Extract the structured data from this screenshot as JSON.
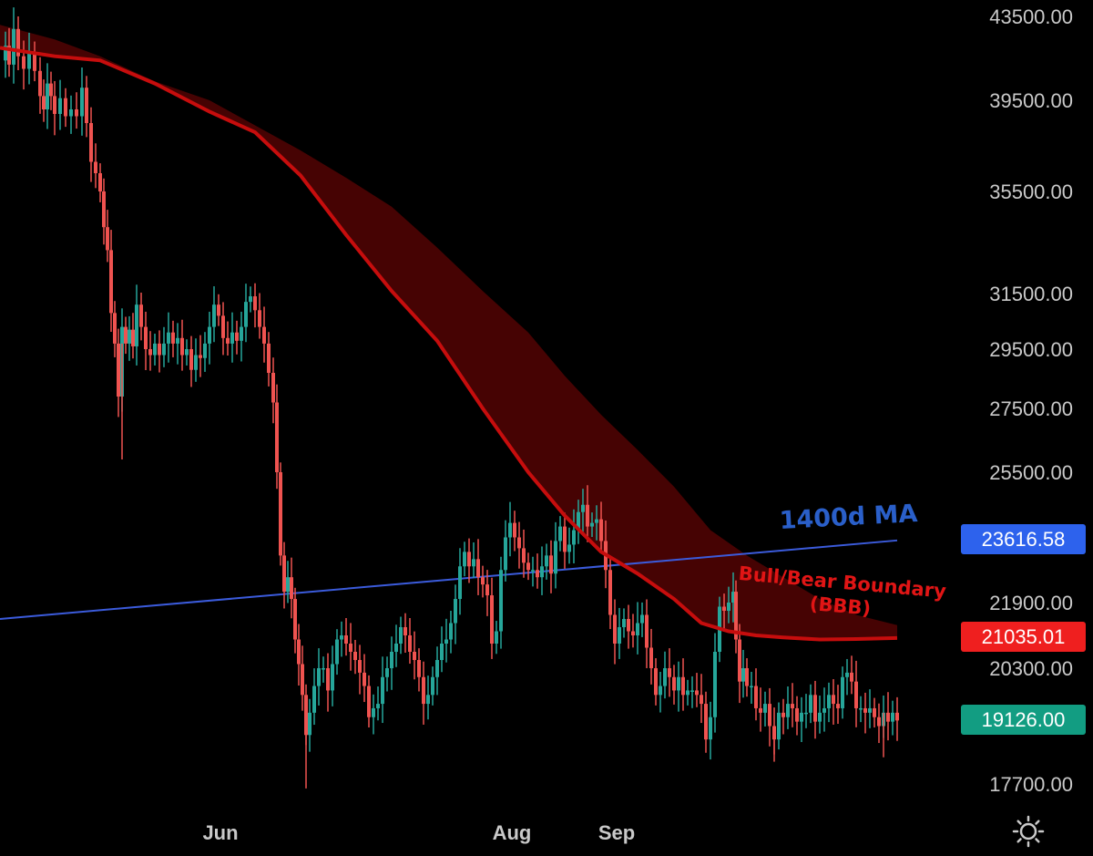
{
  "chart_data": {
    "type": "candlestick",
    "y_ticks": [
      "43500.00",
      "39500.00",
      "35500.00",
      "31500.00",
      "29500.00",
      "27500.00",
      "25500.00",
      "21900.00",
      "20300.00",
      "17700.00"
    ],
    "x_ticks": [
      "Jun",
      "Aug",
      "Sep"
    ],
    "series": [
      {
        "name": "1400d MA",
        "start": 21500,
        "end": 23616.58
      },
      {
        "name": "Bull/Bear Boundary (BBB)"
      }
    ],
    "annotations": {
      "ma_label": "1400d MA",
      "bbb_label_line1": "Bull/Bear Boundary",
      "bbb_label_line2": "(BBB)"
    },
    "price_badges": [
      {
        "value": "23616.58",
        "color": "#2d62ed"
      },
      {
        "value": "21035.01",
        "color": "#ef1f1f"
      },
      {
        "value": "19126.00",
        "color": "#129d82"
      }
    ],
    "colors": {
      "up": "#26a69a",
      "down": "#ef5350",
      "ma": "#3b5bdb",
      "bbb": "#c60d0d",
      "band": "#4a0303"
    },
    "price_path": [
      [
        0,
        41400
      ],
      [
        6,
        42100
      ],
      [
        10,
        41200
      ],
      [
        15,
        42900
      ],
      [
        20,
        41600
      ],
      [
        26,
        41000
      ],
      [
        32,
        41800
      ],
      [
        38,
        40900
      ],
      [
        44,
        39700
      ],
      [
        48,
        39100
      ],
      [
        52,
        40300
      ],
      [
        56,
        39700
      ],
      [
        60,
        38900
      ],
      [
        66,
        39600
      ],
      [
        72,
        38800
      ],
      [
        78,
        39100
      ],
      [
        84,
        38800
      ],
      [
        90,
        40100
      ],
      [
        95,
        38500
      ],
      [
        100,
        36800
      ],
      [
        105,
        36300
      ],
      [
        110,
        35500
      ],
      [
        114,
        34100
      ],
      [
        118,
        33200
      ],
      [
        122,
        30800
      ],
      [
        126,
        29700
      ],
      [
        130,
        27900
      ],
      [
        134,
        30300
      ],
      [
        138,
        29700
      ],
      [
        142,
        30200
      ],
      [
        146,
        29600
      ],
      [
        150,
        31100
      ],
      [
        155,
        30300
      ],
      [
        160,
        29500
      ],
      [
        165,
        29300
      ],
      [
        170,
        29700
      ],
      [
        175,
        29300
      ],
      [
        180,
        29700
      ],
      [
        185,
        30100
      ],
      [
        190,
        29700
      ],
      [
        195,
        29900
      ],
      [
        200,
        29300
      ],
      [
        205,
        29500
      ],
      [
        210,
        28800
      ],
      [
        215,
        29300
      ],
      [
        220,
        29200
      ],
      [
        225,
        29700
      ],
      [
        230,
        30300
      ],
      [
        235,
        31100
      ],
      [
        240,
        30700
      ],
      [
        245,
        29900
      ],
      [
        250,
        29700
      ],
      [
        255,
        30100
      ],
      [
        260,
        29800
      ],
      [
        265,
        30300
      ],
      [
        270,
        31200
      ],
      [
        275,
        31400
      ],
      [
        280,
        30900
      ],
      [
        285,
        30300
      ],
      [
        290,
        29700
      ],
      [
        295,
        28700
      ],
      [
        300,
        27700
      ],
      [
        304,
        25500
      ],
      [
        308,
        23200
      ],
      [
        312,
        22200
      ],
      [
        316,
        22600
      ],
      [
        320,
        22000
      ],
      [
        324,
        21000
      ],
      [
        328,
        20400
      ],
      [
        332,
        19700
      ],
      [
        336,
        18800
      ],
      [
        340,
        19300
      ],
      [
        345,
        19900
      ],
      [
        350,
        20300
      ],
      [
        355,
        20300
      ],
      [
        360,
        19800
      ],
      [
        365,
        20400
      ],
      [
        370,
        21000
      ],
      [
        375,
        21100
      ],
      [
        380,
        20900
      ],
      [
        385,
        20700
      ],
      [
        390,
        20500
      ],
      [
        395,
        20200
      ],
      [
        400,
        19900
      ],
      [
        405,
        19200
      ],
      [
        410,
        19400
      ],
      [
        415,
        19500
      ],
      [
        420,
        20100
      ],
      [
        425,
        20300
      ],
      [
        430,
        20700
      ],
      [
        435,
        20900
      ],
      [
        440,
        21300
      ],
      [
        445,
        21100
      ],
      [
        450,
        20700
      ],
      [
        455,
        20500
      ],
      [
        460,
        20100
      ],
      [
        465,
        19500
      ],
      [
        470,
        19700
      ],
      [
        475,
        20100
      ],
      [
        480,
        20500
      ],
      [
        485,
        20900
      ],
      [
        490,
        21000
      ],
      [
        495,
        21400
      ],
      [
        500,
        22000
      ],
      [
        505,
        22900
      ],
      [
        510,
        23300
      ],
      [
        515,
        22900
      ],
      [
        520,
        23100
      ],
      [
        525,
        22600
      ],
      [
        530,
        22400
      ],
      [
        535,
        22100
      ],
      [
        540,
        20900
      ],
      [
        545,
        21200
      ],
      [
        550,
        22800
      ],
      [
        555,
        23700
      ],
      [
        560,
        24100
      ],
      [
        565,
        23700
      ],
      [
        570,
        23400
      ],
      [
        575,
        23000
      ],
      [
        580,
        22800
      ],
      [
        585,
        22800
      ],
      [
        590,
        22600
      ],
      [
        595,
        22900
      ],
      [
        600,
        23200
      ],
      [
        605,
        22700
      ],
      [
        610,
        23600
      ],
      [
        615,
        24000
      ],
      [
        620,
        23300
      ],
      [
        625,
        23500
      ],
      [
        630,
        23900
      ],
      [
        635,
        24400
      ],
      [
        640,
        24600
      ],
      [
        645,
        24000
      ],
      [
        650,
        24100
      ],
      [
        655,
        24200
      ],
      [
        660,
        23600
      ],
      [
        665,
        22800
      ],
      [
        670,
        21600
      ],
      [
        675,
        20900
      ],
      [
        680,
        21300
      ],
      [
        685,
        21500
      ],
      [
        690,
        21200
      ],
      [
        695,
        21100
      ],
      [
        700,
        21400
      ],
      [
        705,
        21600
      ],
      [
        710,
        20800
      ],
      [
        715,
        20300
      ],
      [
        720,
        19700
      ],
      [
        725,
        19900
      ],
      [
        730,
        20300
      ],
      [
        735,
        20100
      ],
      [
        740,
        19800
      ],
      [
        745,
        20100
      ],
      [
        750,
        19700
      ],
      [
        755,
        19800
      ],
      [
        760,
        19800
      ],
      [
        765,
        19700
      ],
      [
        770,
        19500
      ],
      [
        775,
        18700
      ],
      [
        780,
        19200
      ],
      [
        785,
        20700
      ],
      [
        790,
        21800
      ],
      [
        795,
        21700
      ],
      [
        800,
        21900
      ],
      [
        805,
        22200
      ],
      [
        808,
        21000
      ],
      [
        812,
        20000
      ],
      [
        816,
        20300
      ],
      [
        820,
        19900
      ],
      [
        825,
        19900
      ],
      [
        830,
        19400
      ],
      [
        835,
        19300
      ],
      [
        840,
        19500
      ],
      [
        845,
        19000
      ],
      [
        850,
        18700
      ],
      [
        855,
        19300
      ],
      [
        860,
        19200
      ],
      [
        865,
        19500
      ],
      [
        870,
        19400
      ],
      [
        875,
        19100
      ],
      [
        880,
        19300
      ],
      [
        885,
        19300
      ],
      [
        890,
        19700
      ],
      [
        895,
        19100
      ],
      [
        900,
        19300
      ],
      [
        905,
        19400
      ],
      [
        910,
        19700
      ],
      [
        915,
        19500
      ],
      [
        920,
        19400
      ],
      [
        925,
        20100
      ],
      [
        930,
        20200
      ],
      [
        935,
        20000
      ],
      [
        940,
        19400
      ],
      [
        945,
        19400
      ],
      [
        950,
        19300
      ],
      [
        955,
        19400
      ],
      [
        960,
        19200
      ],
      [
        965,
        19000
      ],
      [
        970,
        19300
      ],
      [
        975,
        19100
      ],
      [
        980,
        19300
      ],
      [
        985,
        19126
      ]
    ],
    "bbb_path": [
      [
        0,
        42000
      ],
      [
        60,
        41600
      ],
      [
        110,
        41400
      ],
      [
        170,
        40300
      ],
      [
        230,
        39000
      ],
      [
        280,
        38100
      ],
      [
        330,
        36200
      ],
      [
        380,
        33800
      ],
      [
        430,
        31600
      ],
      [
        480,
        29800
      ],
      [
        530,
        27500
      ],
      [
        580,
        25500
      ],
      [
        620,
        24300
      ],
      [
        660,
        23300
      ],
      [
        700,
        22700
      ],
      [
        740,
        22000
      ],
      [
        770,
        21400
      ],
      [
        800,
        21200
      ],
      [
        830,
        21100
      ],
      [
        860,
        21050
      ],
      [
        900,
        21000
      ],
      [
        940,
        21010
      ],
      [
        985,
        21035
      ]
    ],
    "band_top": [
      [
        0,
        43100
      ],
      [
        60,
        42400
      ],
      [
        110,
        41600
      ],
      [
        170,
        40400
      ],
      [
        230,
        39500
      ],
      [
        280,
        38400
      ],
      [
        330,
        37300
      ],
      [
        380,
        36100
      ],
      [
        430,
        34900
      ],
      [
        480,
        33300
      ],
      [
        530,
        31600
      ],
      [
        580,
        30100
      ],
      [
        620,
        28600
      ],
      [
        660,
        27300
      ],
      [
        700,
        26200
      ],
      [
        740,
        25100
      ],
      [
        780,
        23900
      ],
      [
        820,
        23200
      ],
      [
        860,
        22600
      ],
      [
        900,
        22000
      ],
      [
        940,
        21600
      ],
      [
        985,
        21350
      ]
    ],
    "ylim": [
      17700,
      43500
    ],
    "x_domain": [
      0,
      990
    ],
    "ma_range": [
      [
        0,
        21500
      ],
      [
        985,
        23616.58
      ]
    ],
    "x_tick_positions": [
      100,
      420,
      535
    ]
  },
  "ui": {
    "settings_icon": "sun-settings-icon"
  }
}
